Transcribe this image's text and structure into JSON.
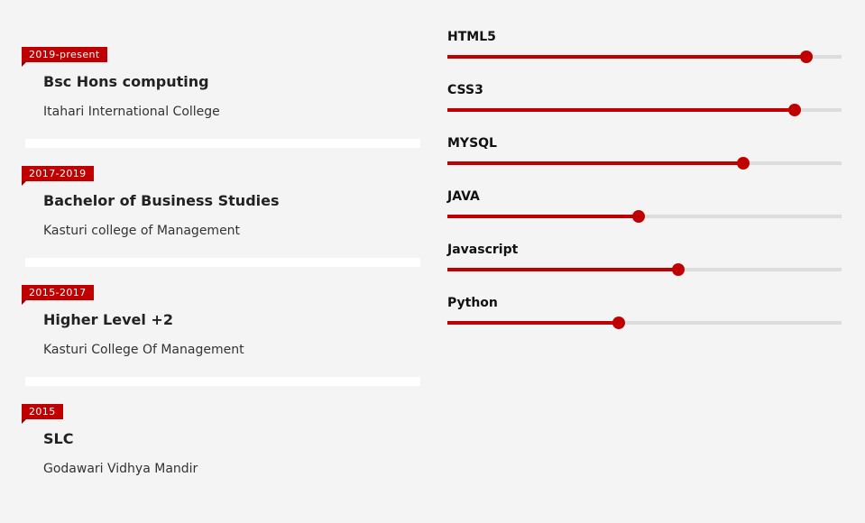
{
  "colors": {
    "accent": "#c00000",
    "background": "#f4f4f4",
    "track": "#dddddd",
    "divider": "#ffffff"
  },
  "education": [
    {
      "period": "2019-present",
      "title": "Bsc Hons computing",
      "school": "Itahari International College"
    },
    {
      "period": "2017-2019",
      "title": "Bachelor of Business Studies",
      "school": "Kasturi college of Management"
    },
    {
      "period": "2015-2017",
      "title": "Higher Level +2",
      "school": "Kasturi College Of Management"
    },
    {
      "period": "2015",
      "title": "SLC",
      "school": "Godawari Vidhya Mandir"
    }
  ],
  "skills": [
    {
      "name": "HTML5",
      "level": 91
    },
    {
      "name": "CSS3",
      "level": 88
    },
    {
      "name": "MYSQL",
      "level": 75
    },
    {
      "name": "JAVA",
      "level": 48.5
    },
    {
      "name": "Javascript",
      "level": 58.5
    },
    {
      "name": "Python",
      "level": 43.5
    }
  ]
}
